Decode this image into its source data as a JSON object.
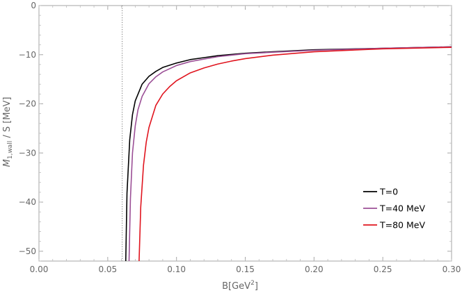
{
  "chart_data": {
    "type": "line",
    "title": "",
    "xlabel": "B[GeV",
    "xlabel_sup": "2",
    "xlabel_end": "]",
    "ylabel_sym": "M",
    "ylabel_sub": "1,wall",
    "ylabel_rest": " / S [MeV]",
    "xlim": [
      0.0,
      0.3
    ],
    "ylim": [
      -52,
      0
    ],
    "xticks": [
      "0.00",
      "0.05",
      "0.10",
      "0.15",
      "0.20",
      "0.25",
      "0.30"
    ],
    "yticks": [
      "0",
      "-10",
      "-20",
      "-30",
      "-40",
      "-50"
    ],
    "vline_x": 0.0605,
    "legend_position": "bottom-right",
    "series": [
      {
        "name": "T=0",
        "color": "#000000",
        "x": [
          0.0631,
          0.064,
          0.066,
          0.068,
          0.07,
          0.075,
          0.08,
          0.085,
          0.09,
          0.1,
          0.11,
          0.12,
          0.13,
          0.15,
          0.17,
          0.2,
          0.25,
          0.3
        ],
        "y": [
          -52.0,
          -38.2,
          -27.3,
          -22.2,
          -19.4,
          -16.0,
          -14.4,
          -13.4,
          -12.6,
          -11.7,
          -11.0,
          -10.6,
          -10.2,
          -9.7,
          -9.4,
          -9.0,
          -8.7,
          -8.4
        ]
      },
      {
        "name": "T=40 MeV",
        "color": "#9b4f96",
        "x": [
          0.0655,
          0.0665,
          0.068,
          0.07,
          0.072,
          0.075,
          0.08,
          0.085,
          0.09,
          0.1,
          0.11,
          0.12,
          0.13,
          0.15,
          0.17,
          0.2,
          0.25,
          0.3
        ],
        "y": [
          -52.0,
          -39.3,
          -30.0,
          -24.5,
          -21.2,
          -18.5,
          -15.9,
          -14.5,
          -13.5,
          -12.2,
          -11.4,
          -10.9,
          -10.4,
          -9.8,
          -9.5,
          -9.1,
          -8.7,
          -8.4
        ]
      },
      {
        "name": "T=80 MeV",
        "color": "#e0141e",
        "x": [
          0.0728,
          0.074,
          0.076,
          0.078,
          0.08,
          0.085,
          0.09,
          0.095,
          0.1,
          0.11,
          0.12,
          0.13,
          0.14,
          0.15,
          0.17,
          0.2,
          0.25,
          0.3
        ],
        "y": [
          -52.0,
          -41.0,
          -32.5,
          -27.8,
          -24.8,
          -20.3,
          -18.0,
          -16.5,
          -15.3,
          -13.7,
          -12.7,
          -11.9,
          -11.3,
          -10.8,
          -10.1,
          -9.4,
          -8.8,
          -8.5
        ]
      }
    ]
  }
}
